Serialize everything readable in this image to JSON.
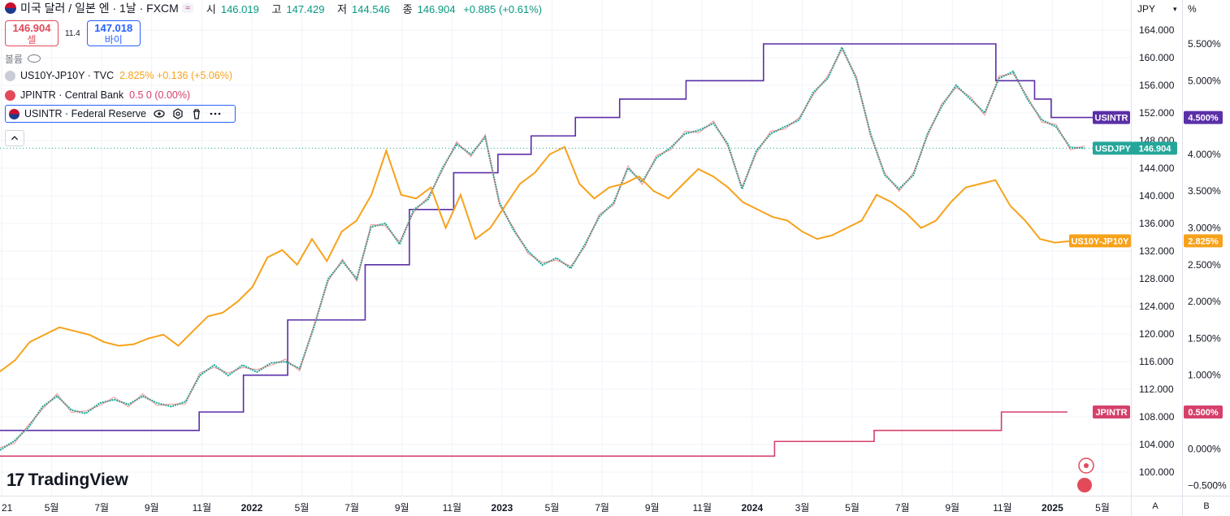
{
  "header": {
    "title": "미국 달러 / 일본 엔 · 1날 · FXCM",
    "pill": "≈",
    "ohlc": [
      {
        "label": "시",
        "value": "146.019"
      },
      {
        "label": "고",
        "value": "147.429"
      },
      {
        "label": "저",
        "value": "144.546"
      },
      {
        "label": "종",
        "value": "146.904"
      }
    ],
    "change": "+0.885 (+0.61%)"
  },
  "trade": {
    "sell_price": "146.904",
    "sell_label": "셀",
    "spread": "11.4",
    "buy_price": "147.018",
    "buy_label": "바이"
  },
  "volume_label": "볼륨",
  "indicators": [
    {
      "name": "US10Y-JP10Y · TVC",
      "values": "2.825%  +0.136 (+5.06%)",
      "color": "#f7a21b"
    },
    {
      "name": "JPINTR · Central Bank",
      "values": "0.5  0 (0.00%)",
      "color": "#d5416b"
    },
    {
      "name": "USINTR · Federal Reserve",
      "values": "",
      "color": "#2962ff"
    }
  ],
  "toolbar": {
    "currency": "JPY",
    "percent": "%",
    "btn_a": "A",
    "btn_b": "B"
  },
  "logo_text": "TradingView",
  "chart_data": {
    "type": "line",
    "x_ticks": [
      "21",
      "5월",
      "7월",
      "9월",
      "11월",
      "2022",
      "5월",
      "7월",
      "9월",
      "11월",
      "2023",
      "5월",
      "7월",
      "9월",
      "11월",
      "2024",
      "3월",
      "5월",
      "7월",
      "9월",
      "11월",
      "2025",
      "5월"
    ],
    "y_left_ticks": [
      "164.000",
      "160.000",
      "156.000",
      "152.000",
      "148.000",
      "144.000",
      "140.000",
      "136.000",
      "132.000",
      "128.000",
      "124.000",
      "120.000",
      "116.000",
      "112.000",
      "108.000",
      "104.000",
      "100.000"
    ],
    "y_right_ticks": [
      "5.500%",
      "5.000%",
      "4.500%",
      "4.000%",
      "3.500%",
      "3.000%",
      "2.500%",
      "2.000%",
      "1.500%",
      "1.000%",
      "0.500%",
      "0.000%",
      "−0.500%"
    ],
    "ylim_left": [
      100,
      164
    ],
    "ylim_right": [
      -0.5,
      5.5
    ],
    "grid": true,
    "series": [
      {
        "name": "USDJPY",
        "color": "#26a69a",
        "axis": "left",
        "last": "146.904",
        "values": [
          103.2,
          104.5,
          106.5,
          109.5,
          111.0,
          109.0,
          108.5,
          110.0,
          110.5,
          109.8,
          111.0,
          110.0,
          109.5,
          110.2,
          114.0,
          115.5,
          114.0,
          115.5,
          114.5,
          115.8,
          116.0,
          115.0,
          121.0,
          128.0,
          130.5,
          128.0,
          135.5,
          136.0,
          133.0,
          138.0,
          139.5,
          144.0,
          147.5,
          146.0,
          148.5,
          139.0,
          135.0,
          132.0,
          130.0,
          131.0,
          129.5,
          133.0,
          137.0,
          139.0,
          144.0,
          142.0,
          145.5,
          147.0,
          149.0,
          149.5,
          150.5,
          147.5,
          141.0,
          146.5,
          149.0,
          150.0,
          151.0,
          155.0,
          157.0,
          161.5,
          157.0,
          149.0,
          143.0,
          141.0,
          143.0,
          149.0,
          153.0,
          156.0,
          154.0,
          152.0,
          157.0,
          158.0,
          154.0,
          151.0,
          150.0,
          147.0,
          146.9
        ]
      },
      {
        "name": "US10Y-JP10Y",
        "color": "#f7a21b",
        "axis": "right",
        "last": "2.825%",
        "values": [
          1.05,
          1.2,
          1.45,
          1.55,
          1.65,
          1.6,
          1.55,
          1.45,
          1.4,
          1.42,
          1.5,
          1.55,
          1.4,
          1.6,
          1.8,
          1.85,
          2.0,
          2.2,
          2.6,
          2.7,
          2.5,
          2.85,
          2.55,
          2.95,
          3.1,
          3.45,
          4.05,
          3.45,
          3.4,
          3.55,
          3.0,
          3.45,
          2.85,
          3.0,
          3.3,
          3.6,
          3.75,
          4.0,
          4.1,
          3.6,
          3.4,
          3.55,
          3.6,
          3.7,
          3.5,
          3.4,
          3.6,
          3.8,
          3.7,
          3.55,
          3.35,
          3.25,
          3.15,
          3.1,
          2.95,
          2.85,
          2.9,
          3.0,
          3.1,
          3.45,
          3.35,
          3.2,
          3.0,
          3.1,
          3.35,
          3.55,
          3.6,
          3.65,
          3.3,
          3.1,
          2.85,
          2.8,
          2.82,
          2.825
        ]
      },
      {
        "name": "USINTR",
        "color": "#5b2fa8",
        "axis": "right",
        "last": "4.500%",
        "steps": [
          [
            0.0,
            0.25
          ],
          [
            0.18,
            0.5
          ],
          [
            0.22,
            1.0
          ],
          [
            0.26,
            1.75
          ],
          [
            0.33,
            2.5
          ],
          [
            0.37,
            3.25
          ],
          [
            0.41,
            3.75
          ],
          [
            0.45,
            4.0
          ],
          [
            0.48,
            4.25
          ],
          [
            0.52,
            4.5
          ],
          [
            0.56,
            4.75
          ],
          [
            0.62,
            5.0
          ],
          [
            0.69,
            5.5
          ],
          [
            0.9,
            5.0
          ],
          [
            0.935,
            4.75
          ],
          [
            0.95,
            4.5
          ],
          [
            0.98,
            4.5
          ]
        ]
      },
      {
        "name": "JPINTR",
        "color": "#d5416b",
        "axis": "right",
        "last": "0.500%",
        "steps": [
          [
            0.0,
            -0.1
          ],
          [
            0.7,
            0.1
          ],
          [
            0.79,
            0.25
          ],
          [
            0.905,
            0.5
          ],
          [
            0.95,
            0.5
          ]
        ]
      }
    ]
  }
}
